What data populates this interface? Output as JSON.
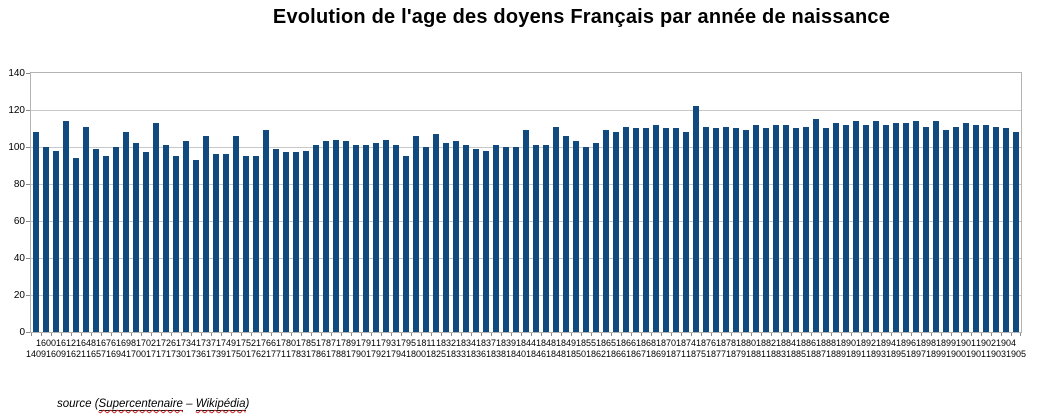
{
  "title": "Evolution de l'age des doyens Français par année de naissance",
  "source": {
    "prefix": "source (",
    "link1": "Supercentenaire",
    "separator": " – ",
    "link2": "Wikipédia",
    "suffix": ")"
  },
  "colors": {
    "bar": "#114a7e",
    "gridline": "#c8c8c8",
    "axis": "#b3b3b3",
    "tick": "#8a8a8a",
    "text": "#000000",
    "background": "#ffffff"
  },
  "chart_data": {
    "type": "bar",
    "title": "Evolution de l'age des doyens Français par année de naissance",
    "xlabel": "",
    "ylabel": "",
    "ylim": [
      0,
      140
    ],
    "ytick_step": 20,
    "grid": true,
    "legend": "none",
    "x_labels_staggered_two_rows": true,
    "categories": [
      "1409",
      "1600",
      "1609",
      "1612",
      "1621",
      "1648",
      "1657",
      "1676",
      "1694",
      "1698",
      "1700",
      "1702",
      "1717",
      "1726",
      "1730",
      "1734",
      "1736",
      "1737",
      "1739",
      "1749",
      "1750",
      "1752",
      "1762",
      "1766",
      "1771",
      "1780",
      "1783",
      "1785",
      "1786",
      "1787",
      "1788",
      "1789",
      "1790",
      "1791",
      "1792",
      "1793",
      "1794",
      "1795",
      "1800",
      "1811",
      "1825",
      "1832",
      "1833",
      "1834",
      "1836",
      "1837",
      "1838",
      "1839",
      "1840",
      "1844",
      "1846",
      "1848",
      "1848",
      "1849",
      "1850",
      "1855",
      "1862",
      "1865",
      "1866",
      "1866",
      "1867",
      "1868",
      "1869",
      "1870",
      "1871",
      "1874",
      "1875",
      "1876",
      "1877",
      "1878",
      "1879",
      "1880",
      "1881",
      "1882",
      "1883",
      "1884",
      "1885",
      "1886",
      "1887",
      "1888",
      "1889",
      "1890",
      "1891",
      "1892",
      "1893",
      "1894",
      "1895",
      "1896",
      "1897",
      "1898",
      "1899",
      "1899",
      "1900",
      "1901",
      "1901",
      "1902",
      "1903",
      "1904",
      "1905"
    ],
    "values": [
      108,
      100,
      98,
      114,
      94,
      111,
      99,
      95,
      100,
      108,
      102,
      97,
      113,
      101,
      95,
      103,
      93,
      106,
      96,
      96,
      106,
      95,
      95,
      109,
      99,
      97,
      97,
      98,
      101,
      103,
      104,
      103,
      101,
      101,
      102,
      104,
      101,
      95,
      106,
      100,
      107,
      102,
      103,
      101,
      99,
      98,
      101,
      100,
      100,
      109,
      101,
      101,
      111,
      106,
      103,
      100,
      102,
      109,
      108,
      111,
      110,
      110,
      112,
      110,
      110,
      108,
      122,
      111,
      110,
      111,
      110,
      109,
      112,
      110,
      112,
      112,
      110,
      111,
      115,
      110,
      113,
      112,
      114,
      112,
      114,
      112,
      113,
      113,
      114,
      111,
      114,
      109,
      111,
      113,
      112,
      112,
      111,
      110,
      108
    ]
  }
}
